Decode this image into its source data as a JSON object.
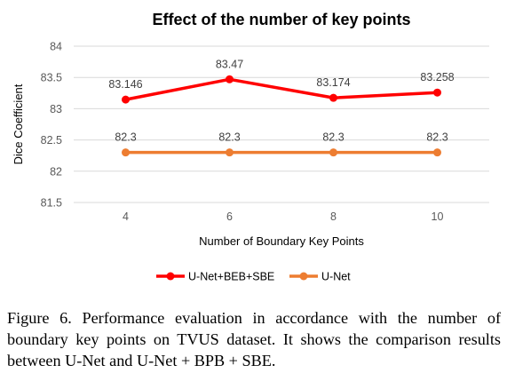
{
  "chart_data": {
    "type": "line",
    "title": "Effect of the number of key points",
    "xlabel": "Number  of Boundary Key Points",
    "ylabel": "Dice Coefficient",
    "categories": [
      "4",
      "6",
      "8",
      "10"
    ],
    "ylim": [
      81.5,
      84
    ],
    "yticks": [
      "81.5",
      "82",
      "82.5",
      "83",
      "83.5",
      "84"
    ],
    "grid": true,
    "legend_position": "bottom",
    "series": [
      {
        "name": "U-Net+BEB+SBE",
        "values": [
          83.146,
          83.47,
          83.174,
          83.258
        ],
        "labels": [
          "83.146",
          "83.47",
          "83.174",
          "83.258"
        ],
        "color": "#ff0000",
        "marker": "circle"
      },
      {
        "name": "U-Net",
        "values": [
          82.3,
          82.3,
          82.3,
          82.3
        ],
        "labels": [
          "82.3",
          "82.3",
          "82.3",
          "82.3"
        ],
        "color": "#ed7d31",
        "marker": "circle"
      }
    ]
  },
  "caption": "Figure 6. Performance evaluation in accordance with the number of boundary key points on TVUS dataset. It shows the comparison results between U-Net and U-Net + BPB + SBE."
}
